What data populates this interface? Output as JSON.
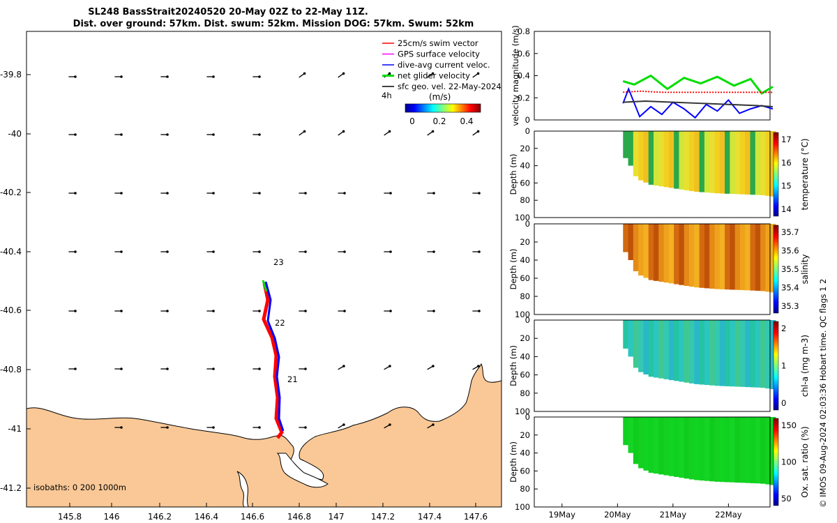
{
  "title": {
    "line1": "SL248 BassStrait20240520 20-May 02Z to 22-May 11Z.",
    "line2": "Dist. over ground: 57km. Dist. swum: 52km. Mission DOG: 57km. Swum: 52km"
  },
  "map": {
    "xticks": [
      "145.8",
      "146",
      "146.2",
      "146.4",
      "146.6",
      "146.8",
      "147",
      "147.2",
      "147.4",
      "147.6"
    ],
    "yticks": [
      "-39.8",
      "-40",
      "-40.2",
      "-40.4",
      "-40.6",
      "-40.8",
      "-41",
      "-41.2"
    ],
    "legend": [
      {
        "label": "25cm/s swim vector",
        "color": "#ff0000"
      },
      {
        "label": "GPS surface velocity",
        "color": "#ff00ff"
      },
      {
        "label": "dive-avg current veloc.",
        "color": "#0000ff"
      },
      {
        "label": "net glider velocity",
        "color": "#00dd00"
      },
      {
        "label": "sfc geo. vel. 22-May-2024",
        "color": "#000000"
      }
    ],
    "legend_note": "4h",
    "colorbar_label": "(m/s)",
    "colorbar_ticks": [
      "0",
      "0.2",
      "0.4"
    ],
    "day_labels": [
      "23",
      "22",
      "21"
    ],
    "isobaths": "isobaths: 0   200  1000m",
    "land_color": "#f9c896"
  },
  "chart_data": [
    {
      "type": "line",
      "title": "",
      "ylabel": "velocity magnitude (m/s)",
      "ylim": [
        0,
        0.8
      ],
      "yticks": [
        "0",
        "0.2",
        "0.4",
        "0.6",
        "0.8"
      ],
      "series": [
        {
          "name": "net glider velocity",
          "color": "#00dd00",
          "x": [
            20.1,
            20.3,
            20.6,
            20.9,
            21.2,
            21.5,
            21.8,
            22.1,
            22.4,
            22.6,
            22.8
          ],
          "values": [
            0.35,
            0.32,
            0.4,
            0.28,
            0.38,
            0.33,
            0.39,
            0.31,
            0.37,
            0.24,
            0.3
          ]
        },
        {
          "name": "swim speed",
          "color": "#ff0000",
          "x": [
            20.1,
            20.4,
            20.8,
            21.2,
            21.6,
            22.0,
            22.4,
            22.8
          ],
          "values": [
            0.25,
            0.26,
            0.25,
            0.25,
            0.25,
            0.25,
            0.25,
            0.25
          ]
        },
        {
          "name": "dive-avg current",
          "color": "#0000ff",
          "x": [
            20.1,
            20.2,
            20.4,
            20.6,
            20.8,
            21.0,
            21.2,
            21.4,
            21.6,
            21.8,
            22.0,
            22.2,
            22.4,
            22.6,
            22.8
          ],
          "values": [
            0.15,
            0.28,
            0.03,
            0.12,
            0.05,
            0.16,
            0.1,
            0.02,
            0.14,
            0.08,
            0.18,
            0.06,
            0.1,
            0.13,
            0.1
          ]
        },
        {
          "name": "sfc geo velocity",
          "color": "#333333",
          "x": [
            20.1,
            20.5,
            21.0,
            21.5,
            22.0,
            22.5,
            22.8
          ],
          "values": [
            0.16,
            0.17,
            0.16,
            0.15,
            0.14,
            0.13,
            0.12
          ]
        }
      ]
    },
    {
      "type": "heatmap",
      "ylabel": "Depth (m)",
      "colorbar_label": "temperature (°C)",
      "cbar_ticks": [
        "14",
        "15",
        "16",
        "17"
      ],
      "ylim": [
        100,
        0
      ],
      "yticks": [
        "0",
        "20",
        "40",
        "60",
        "80",
        "100"
      ],
      "colors": [
        "#2aa84a",
        "#d0e63a",
        "#e8e030",
        "#f2d020",
        "#f0c020"
      ]
    },
    {
      "type": "heatmap",
      "ylabel": "Depth (m)",
      "colorbar_label": "salinity",
      "cbar_ticks": [
        "35.3",
        "35.4",
        "35.5",
        "35.6",
        "35.7"
      ],
      "ylim": [
        100,
        0
      ],
      "yticks": [
        "0",
        "20",
        "40",
        "60",
        "80",
        "100"
      ],
      "colors": [
        "#d36a10",
        "#c05208",
        "#e38a18",
        "#f0a21c",
        "#f2b022"
      ]
    },
    {
      "type": "heatmap",
      "ylabel": "Depth (m)",
      "colorbar_label": "chl-a (mg m-3)",
      "cbar_ticks": [
        "0",
        "1",
        "2"
      ],
      "ylim": [
        100,
        0
      ],
      "yticks": [
        "0",
        "20",
        "40",
        "60",
        "80",
        "100"
      ],
      "colors": [
        "#24c4a4",
        "#2cc6c0",
        "#40c890",
        "#34c8b0",
        "#2ab8c8"
      ]
    },
    {
      "type": "heatmap",
      "ylabel": "Depth (m)",
      "colorbar_label": "Ox. sat. ratio (%)",
      "cbar_ticks": [
        "50",
        "100",
        "150"
      ],
      "ylim": [
        100,
        0
      ],
      "yticks": [
        "0",
        "20",
        "40",
        "60",
        "80",
        "100"
      ],
      "colors": [
        "#10d020",
        "#14d424",
        "#10cc1c",
        "#14d020",
        "#10d420"
      ]
    }
  ],
  "time_axis": {
    "labels": [
      "19May",
      "20May",
      "21May",
      "22May"
    ]
  },
  "side_label": "© IMOS 09-Aug-2024 02:03:36 Hobart time. QC flags 1  2"
}
